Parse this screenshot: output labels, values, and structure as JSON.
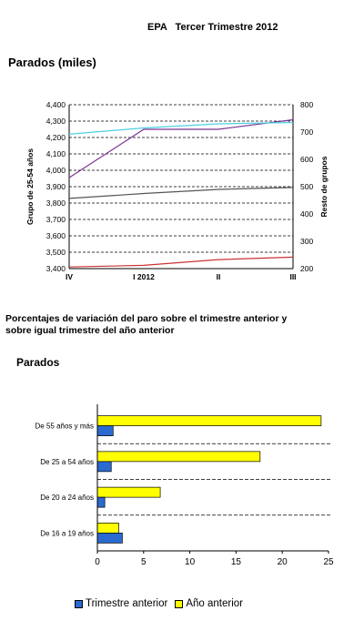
{
  "header": {
    "title": "EPA   Tercer Trimestre 2012"
  },
  "section1": {
    "title": "Parados (miles)"
  },
  "section2": {
    "subtitle": "Porcentajes de variación del paro sobre el trimestre anterior y sobre igual trimestre del año anterior",
    "title": "Parados"
  },
  "legend": {
    "item1": "Trimestre anterior",
    "item2": "Año anterior"
  },
  "colors": {
    "grupo_25_54": "#cc3333",
    "purple_series": "#7b3294",
    "cyan_series": "#4dd0e1",
    "gray_series": "#555555",
    "trimestre_anterior": "#2a6ad1",
    "anio_anterior": "#ffff00"
  },
  "chart_data": [
    {
      "type": "line",
      "x": [
        "IV",
        "I  2012",
        "II",
        "III"
      ],
      "ylabel": "Grupo de 25-54 años",
      "y2label": "Resto de grupos",
      "ylim": [
        3400,
        4400
      ],
      "y2lim": [
        200,
        800
      ],
      "yticks": [
        "3,400",
        "3,500",
        "3,600",
        "3,700",
        "3,800",
        "3,900",
        "4,000",
        "4,100",
        "4,200",
        "4,300",
        "4,400"
      ],
      "y2ticks": [
        "200",
        "300",
        "400",
        "500",
        "600",
        "700",
        "800"
      ],
      "grid": "horizontal dashed",
      "series": [
        {
          "axis": "left",
          "color": "#cc3333",
          "values": [
            3410,
            3420,
            3455,
            3470
          ]
        },
        {
          "axis": "right",
          "color": "#7b3294",
          "values": [
            533,
            710,
            710,
            745
          ]
        },
        {
          "axis": "right",
          "color": "#4dd0e1",
          "values": [
            692,
            715,
            730,
            735
          ]
        },
        {
          "axis": "right",
          "color": "#555555",
          "values": [
            457,
            475,
            490,
            497
          ]
        }
      ]
    },
    {
      "type": "bar",
      "orientation": "horizontal",
      "categories": [
        "De 55 años y más",
        "De 25 a 54 años",
        "De 20 a 24 años",
        "De 16 a 19 años"
      ],
      "xlim": [
        0,
        25
      ],
      "xticks": [
        "0",
        "5",
        "10",
        "15",
        "20",
        "25"
      ],
      "series": [
        {
          "name": "Año anterior",
          "color": "#ffff00",
          "values": [
            24.2,
            17.6,
            6.8,
            2.3
          ]
        },
        {
          "name": "Trimestre anterior",
          "color": "#2a6ad1",
          "values": [
            1.7,
            1.5,
            0.8,
            2.7
          ]
        }
      ]
    }
  ]
}
